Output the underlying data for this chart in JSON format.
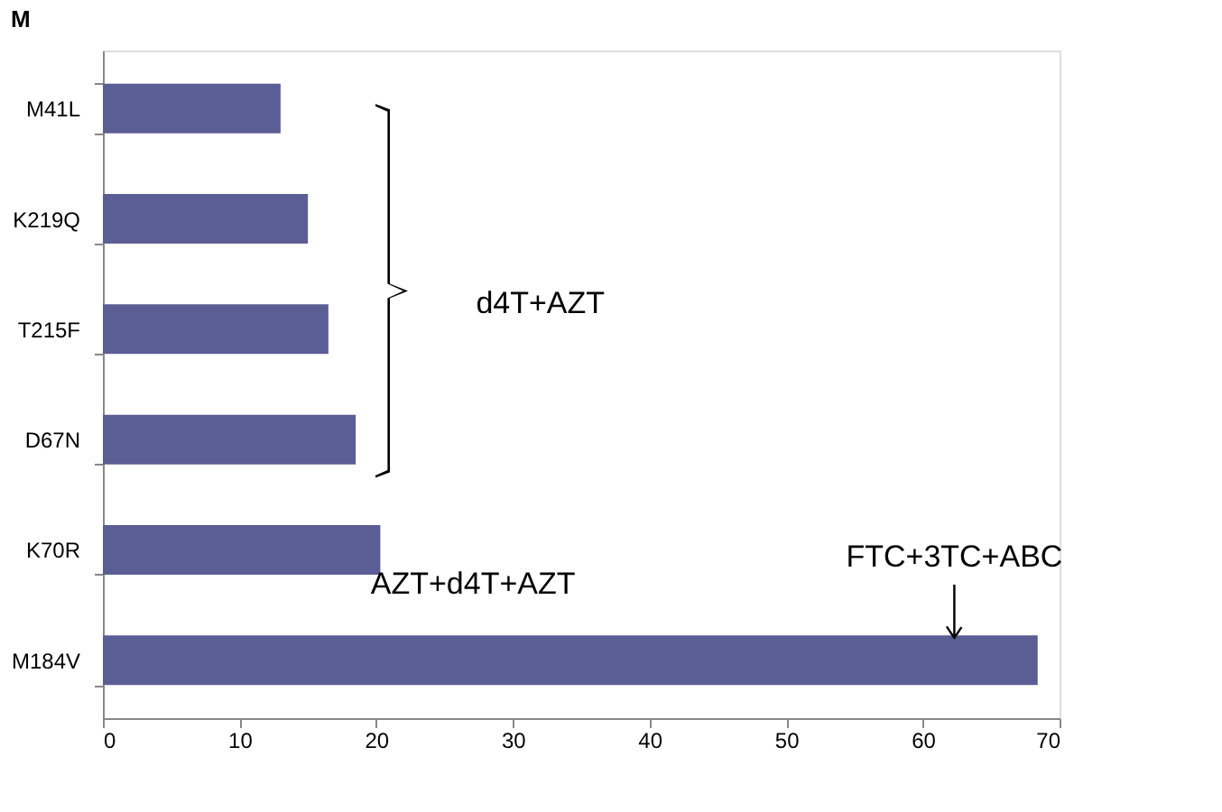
{
  "chart_data": {
    "type": "bar",
    "orientation": "horizontal",
    "title": "M",
    "categories": [
      "M41L",
      "K219Q",
      "T215F",
      "D67N",
      "K70R",
      "M184V"
    ],
    "series": [
      {
        "color": "#5b5e94",
        "values": [
          13,
          15,
          16.5,
          18.5,
          20.3,
          68.4
        ]
      }
    ],
    "xlim": [
      0,
      70
    ],
    "xticks": [
      0,
      10,
      20,
      30,
      40,
      50,
      60,
      70
    ],
    "grid": false,
    "annotations": [
      "d4T+AZT",
      "AZT+d4T+AZT",
      "FTC+3TC+ABC"
    ]
  }
}
